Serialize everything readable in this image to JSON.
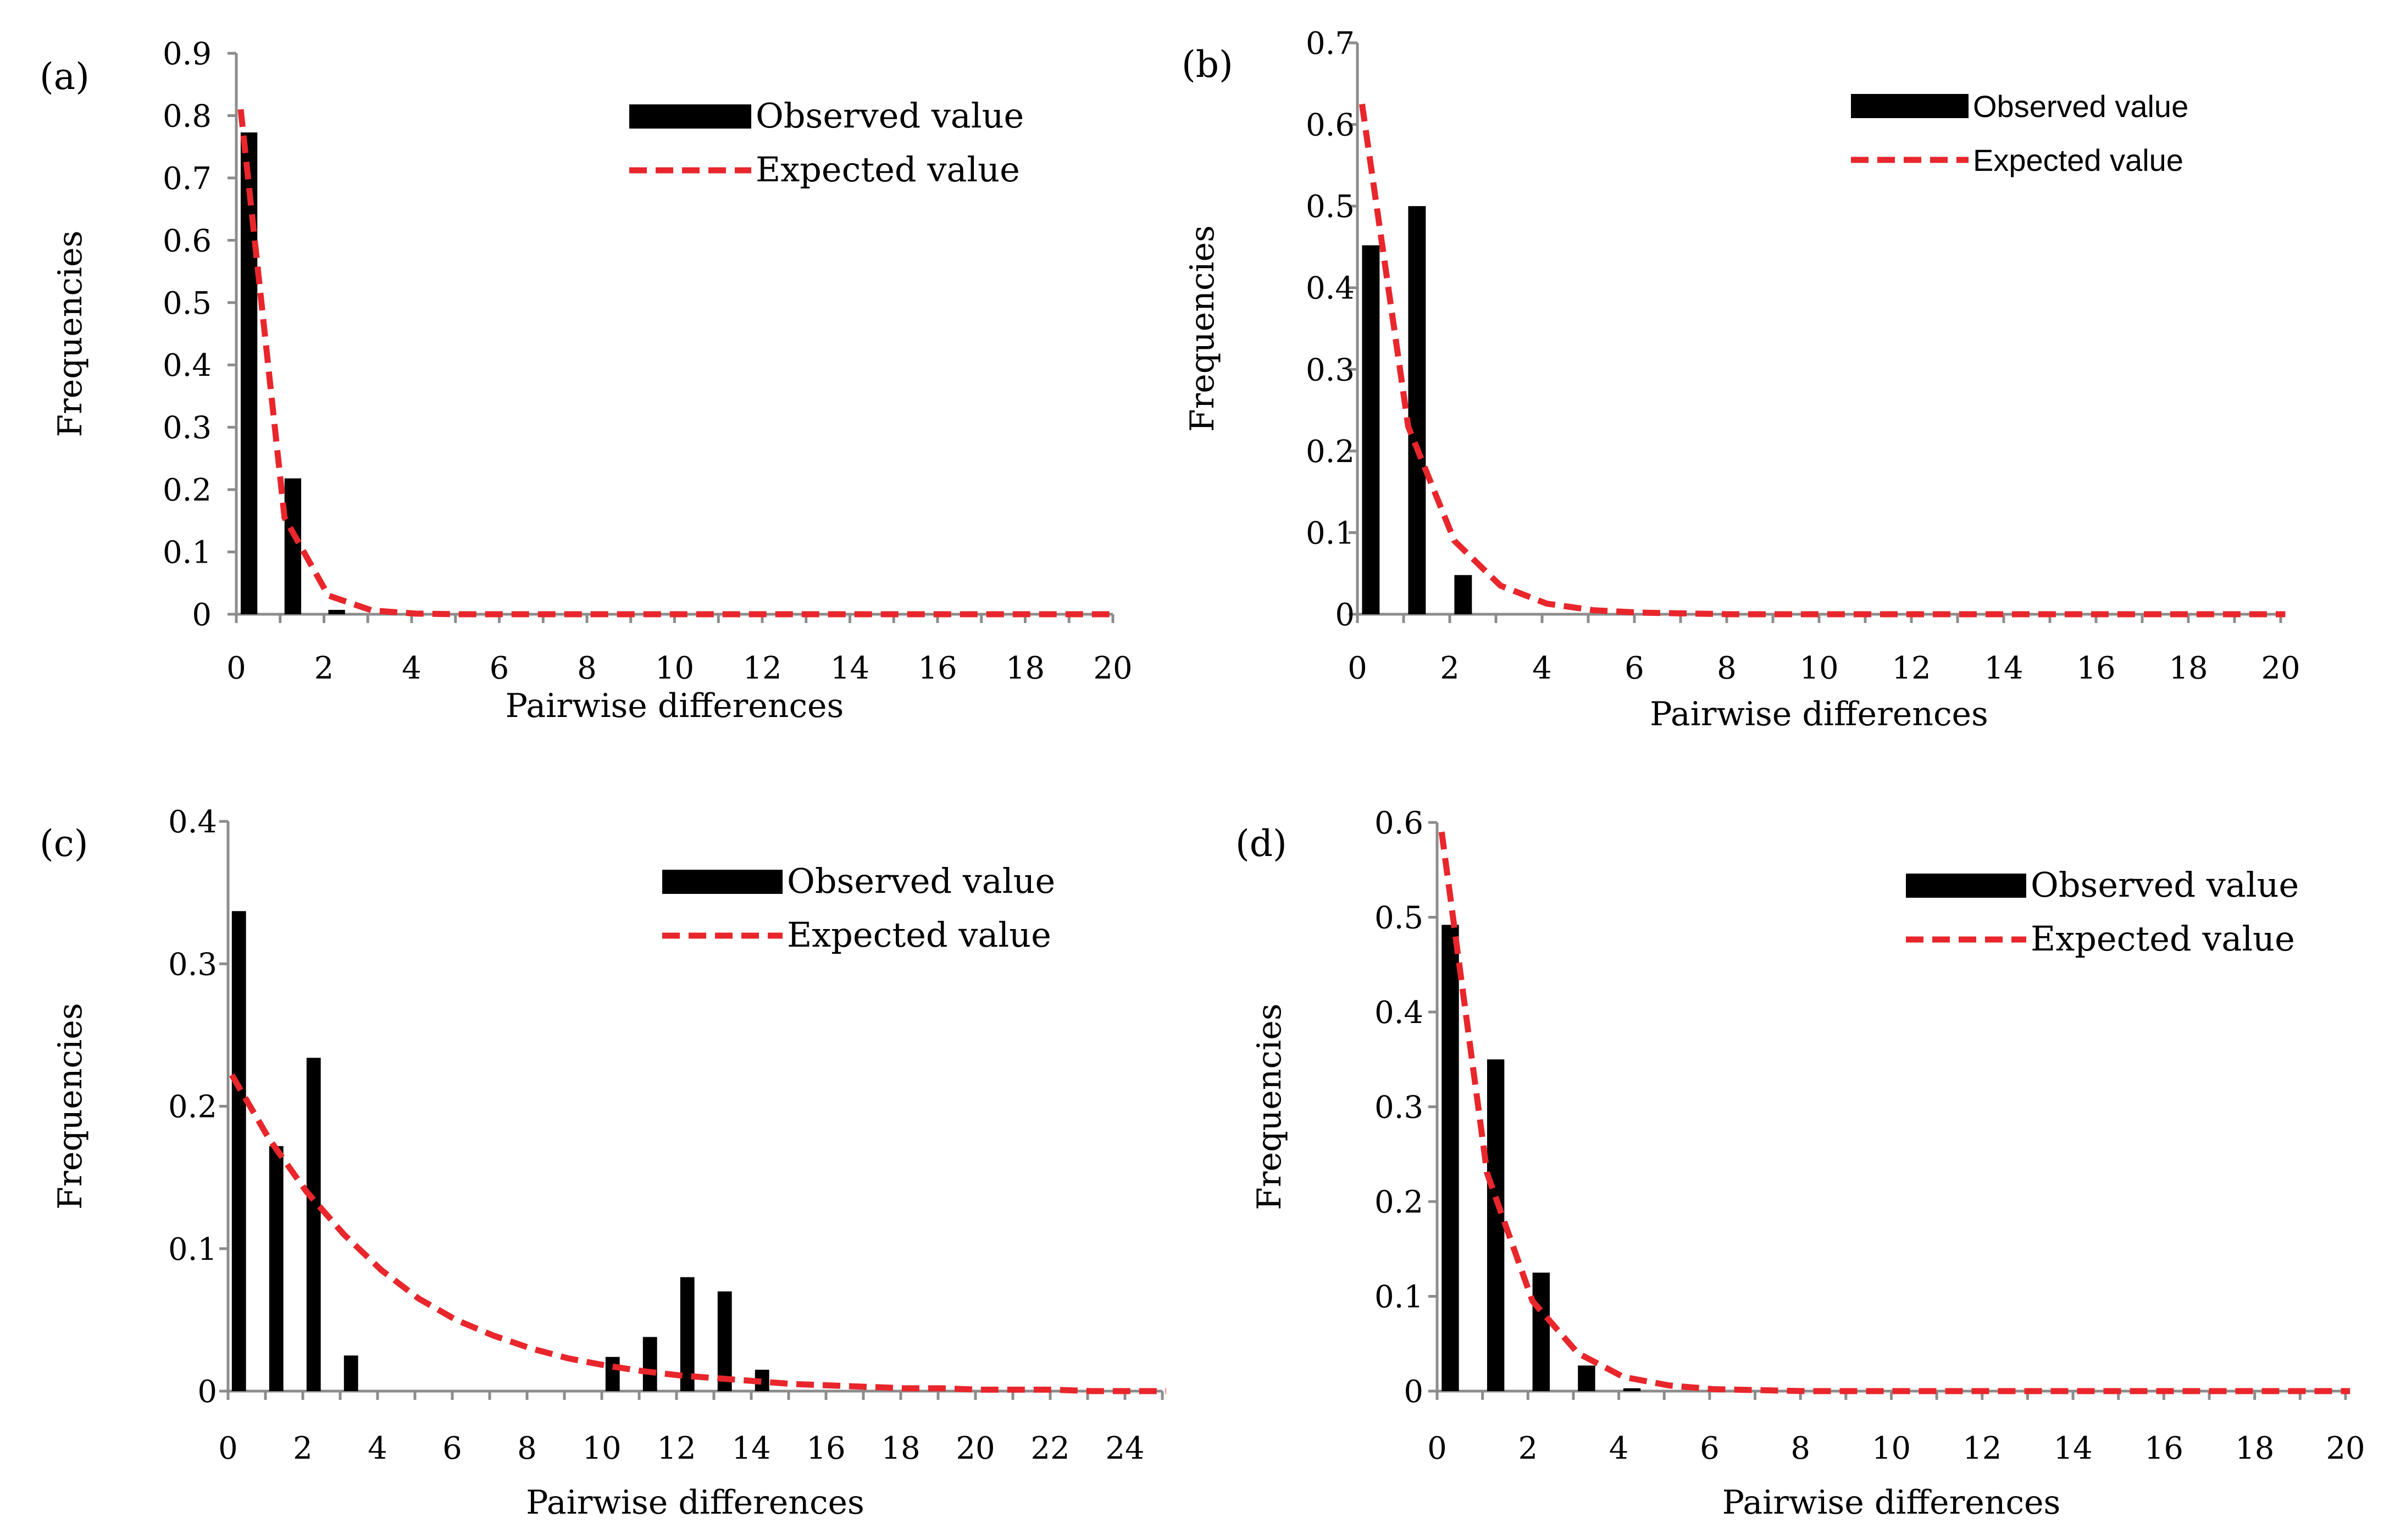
{
  "colors": {
    "observed": "#000000",
    "expected": "#e8262b",
    "axis": "#8c8c8c"
  },
  "chart_data": [
    {
      "panel_label": "(a)",
      "type": "bar",
      "title": "",
      "xlabel": "Pairwise differences",
      "ylabel": "Frequencies",
      "xlim": [
        0,
        20
      ],
      "ylim": [
        0,
        0.9
      ],
      "xticks": [
        0,
        2,
        4,
        6,
        8,
        10,
        12,
        14,
        16,
        18,
        20
      ],
      "yticks": [
        0,
        0.1,
        0.2,
        0.3,
        0.4,
        0.5,
        0.6,
        0.7,
        0.8,
        0.9
      ],
      "legend": {
        "position": "top-right",
        "entries": [
          "Observed value",
          "Expected value"
        ]
      },
      "series": [
        {
          "name": "Observed value",
          "kind": "bar",
          "x": [
            0,
            1,
            2
          ],
          "values": [
            0.773,
            0.218,
            0.007
          ]
        },
        {
          "name": "Expected value",
          "kind": "line-dashed",
          "x": [
            0,
            1,
            2,
            3,
            4,
            5,
            6,
            7,
            8,
            9,
            10,
            11,
            12,
            13,
            14,
            15,
            16,
            17,
            18,
            19,
            20
          ],
          "values": [
            0.81,
            0.155,
            0.03,
            0.006,
            0.001,
            0,
            0,
            0,
            0,
            0,
            0,
            0,
            0,
            0,
            0,
            0,
            0,
            0,
            0,
            0,
            0
          ]
        }
      ]
    },
    {
      "panel_label": "(b)",
      "type": "bar",
      "title": "",
      "xlabel": "Pairwise differences",
      "ylabel": "Frequencies",
      "xlim": [
        0,
        20
      ],
      "ylim": [
        0,
        0.7
      ],
      "xticks": [
        0,
        2,
        4,
        6,
        8,
        10,
        12,
        14,
        16,
        18,
        20
      ],
      "yticks": [
        0,
        0.1,
        0.2,
        0.3,
        0.4,
        0.5,
        0.6,
        0.7
      ],
      "legend": {
        "position": "top-right",
        "entries": [
          "Observed value",
          "Expected value"
        ]
      },
      "series": [
        {
          "name": "Observed value",
          "kind": "bar",
          "x": [
            0,
            1,
            2
          ],
          "values": [
            0.452,
            0.5,
            0.048
          ]
        },
        {
          "name": "Expected value",
          "kind": "line-dashed",
          "x": [
            0,
            1,
            2,
            3,
            4,
            5,
            6,
            7,
            8,
            9,
            10,
            11,
            12,
            13,
            14,
            15,
            16,
            17,
            18,
            19,
            20
          ],
          "values": [
            0.625,
            0.23,
            0.09,
            0.035,
            0.013,
            0.005,
            0.002,
            0.001,
            0,
            0,
            0,
            0,
            0,
            0,
            0,
            0,
            0,
            0,
            0,
            0,
            0
          ]
        }
      ]
    },
    {
      "panel_label": "(c)",
      "type": "bar",
      "title": "",
      "xlabel": "Pairwise differences",
      "ylabel": "Frequencies",
      "xlim": [
        0,
        25
      ],
      "ylim": [
        0,
        0.4
      ],
      "xticks": [
        0,
        2,
        4,
        6,
        8,
        10,
        12,
        14,
        16,
        18,
        20,
        22,
        24
      ],
      "yticks": [
        0,
        0.1,
        0.2,
        0.3,
        0.4
      ],
      "legend": {
        "position": "top-right",
        "entries": [
          "Observed value",
          "Expected value"
        ]
      },
      "series": [
        {
          "name": "Observed value",
          "kind": "bar",
          "x": [
            0,
            1,
            2,
            3,
            10,
            11,
            12,
            13,
            14
          ],
          "values": [
            0.337,
            0.172,
            0.234,
            0.025,
            0.024,
            0.038,
            0.08,
            0.07,
            0.015
          ]
        },
        {
          "name": "Expected value",
          "kind": "line-dashed",
          "x": [
            0,
            1,
            2,
            3,
            4,
            5,
            6,
            7,
            8,
            9,
            10,
            11,
            12,
            13,
            14,
            15,
            16,
            17,
            18,
            19,
            20,
            21,
            22,
            23,
            24,
            25
          ],
          "values": [
            0.222,
            0.177,
            0.14,
            0.11,
            0.085,
            0.065,
            0.05,
            0.039,
            0.03,
            0.023,
            0.018,
            0.014,
            0.011,
            0.009,
            0.007,
            0.005,
            0.004,
            0.003,
            0.002,
            0.002,
            0.001,
            0.001,
            0.001,
            0,
            0,
            0
          ]
        }
      ]
    },
    {
      "panel_label": "(d)",
      "type": "bar",
      "title": "",
      "xlabel": "Pairwise differences",
      "ylabel": "Frequencies",
      "xlim": [
        0,
        20
      ],
      "ylim": [
        0,
        0.6
      ],
      "xticks": [
        0,
        2,
        4,
        6,
        8,
        10,
        12,
        14,
        16,
        18,
        20
      ],
      "yticks": [
        0,
        0.1,
        0.2,
        0.3,
        0.4,
        0.5,
        0.6
      ],
      "legend": {
        "position": "top-right",
        "entries": [
          "Observed value",
          "Expected value"
        ]
      },
      "series": [
        {
          "name": "Observed value",
          "kind": "bar",
          "x": [
            0,
            1,
            2,
            3,
            4
          ],
          "values": [
            0.492,
            0.35,
            0.125,
            0.027,
            0.003
          ]
        },
        {
          "name": "Expected value",
          "kind": "line-dashed",
          "x": [
            0,
            1,
            2,
            3,
            4,
            5,
            6,
            7,
            8,
            9,
            10,
            11,
            12,
            13,
            14,
            15,
            16,
            17,
            18,
            19,
            20
          ],
          "values": [
            0.59,
            0.23,
            0.095,
            0.04,
            0.015,
            0.006,
            0.002,
            0.001,
            0,
            0,
            0,
            0,
            0,
            0,
            0,
            0,
            0,
            0,
            0,
            0,
            0
          ]
        }
      ]
    }
  ]
}
